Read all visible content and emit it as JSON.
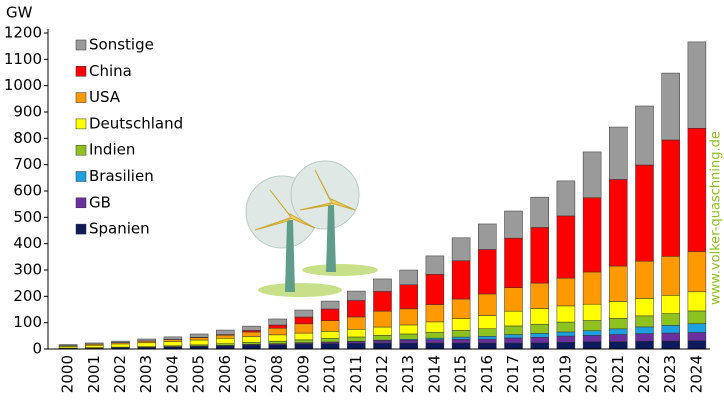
{
  "chart_data": {
    "type": "stacked_bar",
    "y_label": "GW",
    "watermark": "www.volker-quaschning.de",
    "categories": [
      "2000",
      "2001",
      "2002",
      "2003",
      "2004",
      "2005",
      "2006",
      "2007",
      "2008",
      "2009",
      "2010",
      "2011",
      "2012",
      "2013",
      "2014",
      "2015",
      "2016",
      "2017",
      "2018",
      "2019",
      "2020",
      "2021",
      "2022",
      "2023",
      "2024"
    ],
    "series": [
      {
        "name": "Sonstige",
        "color": "#9a9a9a",
        "values": [
          4.2,
          4.2,
          5.5,
          7.4,
          9.6,
          12.5,
          17.1,
          16.5,
          22.9,
          26.6,
          30,
          35.6,
          47.3,
          56,
          70,
          87,
          97,
          103,
          115,
          133,
          174,
          199,
          224,
          254,
          328
        ]
      },
      {
        "name": "China",
        "color": "#ff0000",
        "values": [
          0.3,
          0.4,
          0.5,
          0.6,
          0.8,
          1.3,
          2.6,
          5.9,
          12.2,
          25.8,
          44.7,
          62.7,
          75.3,
          91.4,
          114.6,
          145.4,
          168.7,
          188.2,
          211.4,
          236.3,
          281.9,
          328.9,
          365.4,
          441.9,
          468
        ]
      },
      {
        "name": "USA",
        "color": "#ff9900",
        "values": [
          2.6,
          4.3,
          4.7,
          6.4,
          6.8,
          9.1,
          11.6,
          16.8,
          25.2,
          35.1,
          40.2,
          46.9,
          60,
          61.1,
          65.9,
          74.5,
          82.2,
          89.1,
          96.7,
          105.4,
          122.3,
          134.5,
          141.3,
          148,
          153
        ]
      },
      {
        "name": "Deutschland",
        "color": "#ffff00",
        "values": [
          6.1,
          8.8,
          12,
          14.6,
          16.6,
          18.4,
          20.6,
          22.2,
          23.9,
          25.8,
          27.2,
          29.1,
          31.3,
          34.3,
          39.2,
          44.9,
          50,
          56.1,
          59.3,
          61.4,
          62.2,
          63.9,
          66.3,
          69.5,
          72.7
        ]
      },
      {
        "name": "Indien",
        "color": "#8dc21f",
        "values": [
          1.2,
          1.5,
          1.7,
          2.1,
          3,
          4.4,
          6.3,
          7.9,
          9.6,
          10.9,
          13.1,
          16.1,
          18.4,
          20.2,
          22.5,
          25.1,
          28.7,
          32.8,
          35,
          37.5,
          38.6,
          40.1,
          41.9,
          44.7,
          48.2
        ]
      },
      {
        "name": "Brasilien",
        "color": "#1ea0e0",
        "values": [
          0,
          0,
          0,
          0,
          0,
          0,
          0.2,
          0.2,
          0.3,
          0.6,
          0.9,
          1.4,
          2.5,
          3.4,
          5.9,
          8.7,
          10.7,
          12.8,
          14.7,
          15.5,
          17.8,
          21.5,
          25.6,
          29.1,
          33.7
        ]
      },
      {
        "name": "GB",
        "color": "#6b2fa0",
        "values": [
          0.4,
          0.5,
          0.6,
          0.7,
          0.9,
          1.3,
          2,
          2.4,
          3.2,
          4.1,
          5.2,
          6.5,
          8.4,
          10.5,
          12.4,
          13.6,
          14.5,
          18.9,
          21,
          23.5,
          24.2,
          26.8,
          28.5,
          30,
          31
        ]
      },
      {
        "name": "Spanien",
        "color": "#0d1a5c",
        "values": [
          2.2,
          3.3,
          5,
          6.2,
          8.3,
          10,
          11.6,
          15.1,
          16.7,
          19.1,
          20.7,
          21.7,
          22.8,
          23,
          23,
          23,
          23,
          23.1,
          23.5,
          25.8,
          27.4,
          28.2,
          29.8,
          30.6,
          31.6
        ]
      }
    ],
    "ylim": [
      0,
      1200
    ],
    "yticks": [
      0,
      100,
      200,
      300,
      400,
      500,
      600,
      700,
      800,
      900,
      1000,
      1100,
      1200
    ],
    "grid": false
  }
}
